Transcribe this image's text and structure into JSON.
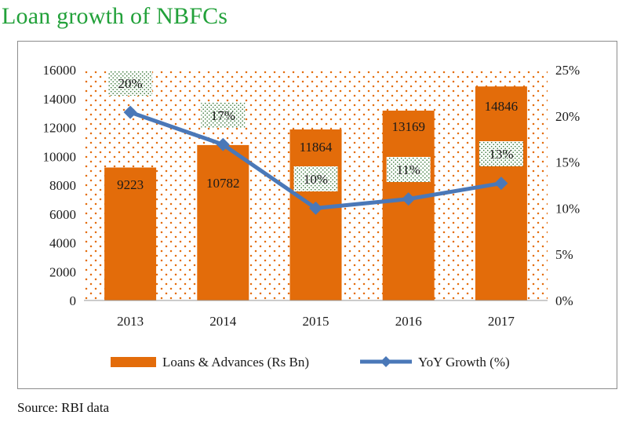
{
  "title": "Loan growth of NBFCs",
  "source": "Source: RBI data",
  "colors": {
    "title": "#22a13a",
    "bar": "#e36c0a",
    "line": "#4a78b8",
    "dots": "#e36c0a",
    "label_dots": "#3c7a3c"
  },
  "chart_data": {
    "type": "bar",
    "categories": [
      "2013",
      "2014",
      "2015",
      "2016",
      "2017"
    ],
    "series": [
      {
        "name": "Loans & Advances (Rs Bn)",
        "type": "bar",
        "axis": "left",
        "values": [
          9223,
          10782,
          11864,
          13169,
          14846
        ],
        "labels": [
          "9223",
          "10782",
          "11864",
          "13169",
          "14846"
        ]
      },
      {
        "name": "YoY Growth (%)",
        "type": "line",
        "axis": "right",
        "values": [
          20.4,
          16.9,
          10.0,
          11.0,
          12.7
        ],
        "labels": [
          "20%",
          "17%",
          "10%",
          "11%",
          "13%"
        ]
      }
    ],
    "y_left": {
      "lim": [
        0,
        16000
      ],
      "ticks": [
        "0",
        "2000",
        "4000",
        "6000",
        "8000",
        "10000",
        "12000",
        "14000",
        "16000"
      ]
    },
    "y_right": {
      "lim": [
        0,
        25
      ],
      "ticks": [
        "0%",
        "5%",
        "10%",
        "15%",
        "20%",
        "25%"
      ]
    },
    "legend": {
      "position": "bottom",
      "entries": [
        "Loans & Advances (Rs Bn)",
        "YoY Growth (%)"
      ]
    },
    "grid": false
  }
}
